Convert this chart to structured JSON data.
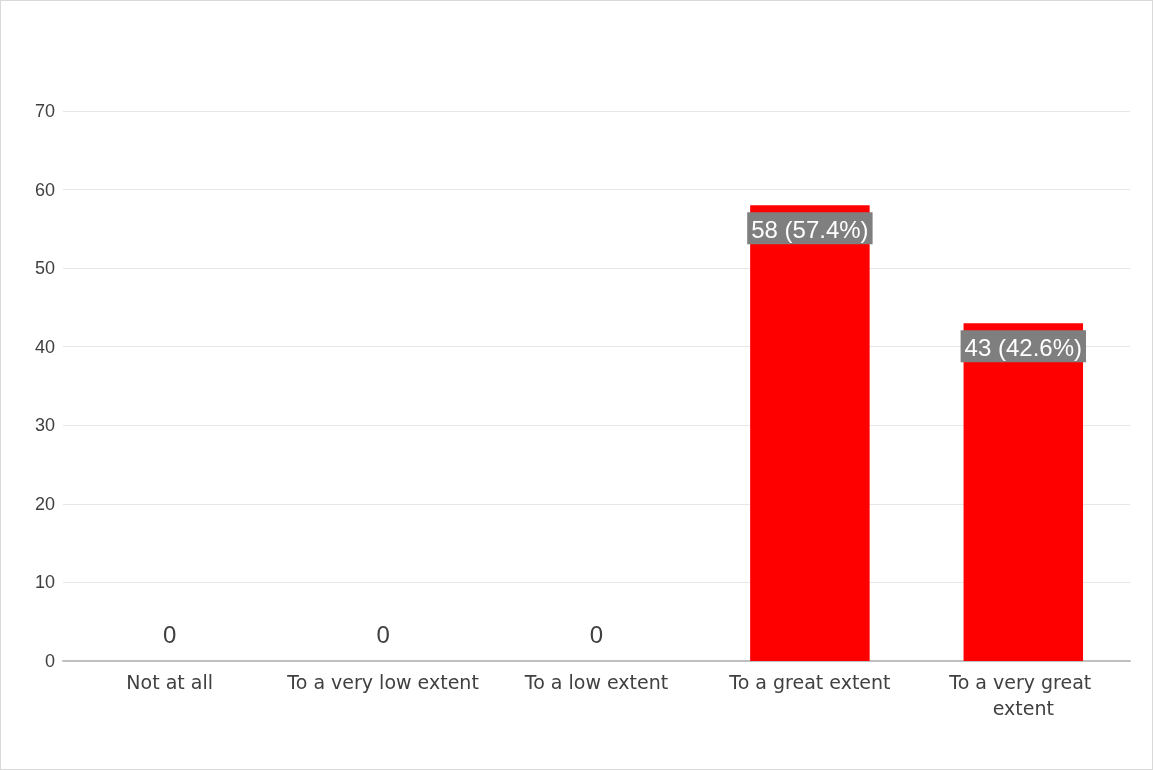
{
  "chart_data": {
    "type": "bar",
    "categories": [
      "Not at all",
      "To a very low extent",
      "To a low extent",
      "To a great extent",
      "To a very great extent"
    ],
    "values": [
      0,
      0,
      0,
      58,
      43
    ],
    "value_labels": [
      "0",
      "0",
      "0",
      "58 (57.4%)",
      "43 (42.6%)"
    ],
    "color": "#ff0000",
    "ylim": [
      0,
      70
    ],
    "yticks": [
      0,
      10,
      20,
      30,
      40,
      50,
      60,
      70
    ],
    "grid": "y"
  }
}
